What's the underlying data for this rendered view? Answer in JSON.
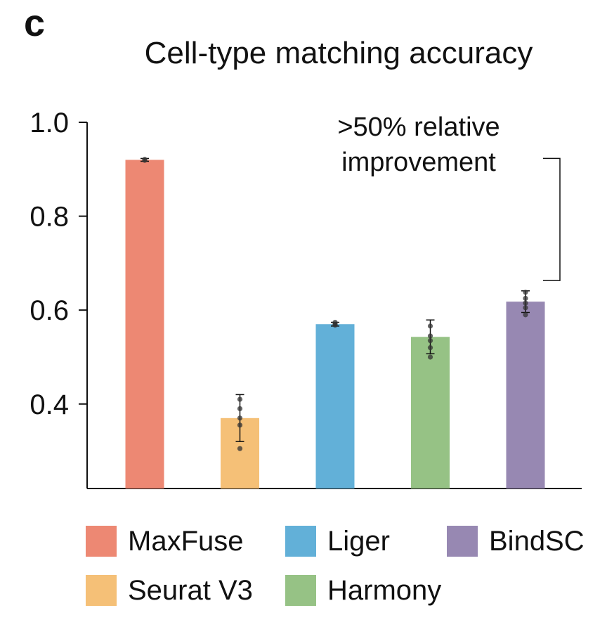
{
  "panel_letter": "c",
  "chart_data": {
    "type": "bar",
    "title": "Cell-type matching accuracy",
    "xlabel": "",
    "ylabel": "",
    "ylim": [
      0.22,
      1.0
    ],
    "yticks": [
      0.4,
      0.6,
      0.8,
      1.0
    ],
    "ytick_labels": [
      "0.4",
      "0.6",
      "0.8",
      "1.0"
    ],
    "grid": false,
    "legend_placement": "bottom",
    "categories": [
      "MaxFuse",
      "Seurat V3",
      "Liger",
      "Harmony",
      "BindSC"
    ],
    "values": [
      0.92,
      0.37,
      0.57,
      0.543,
      0.618
    ],
    "errors": [
      0.003,
      0.05,
      0.004,
      0.036,
      0.023
    ],
    "colors": [
      "#ed8873",
      "#f5c077",
      "#62b0d8",
      "#96c285",
      "#9788b2"
    ],
    "points": [
      [
        0.921,
        0.919
      ],
      [
        0.41,
        0.39,
        0.37,
        0.355,
        0.305
      ],
      [
        0.574,
        0.57,
        0.568
      ],
      [
        0.566,
        0.545,
        0.535,
        0.52,
        0.5
      ],
      [
        0.638,
        0.625,
        0.615,
        0.605,
        0.59
      ]
    ],
    "annotation": {
      "lines": [
        ">50% relative",
        "improvement"
      ],
      "bracket_between": [
        "BindSC",
        "MaxFuse"
      ]
    },
    "legend": [
      {
        "label": "MaxFuse",
        "color": "#ed8873"
      },
      {
        "label": "Liger",
        "color": "#62b0d8"
      },
      {
        "label": "BindSC",
        "color": "#9788b2"
      },
      {
        "label": "Seurat V3",
        "color": "#f5c077"
      },
      {
        "label": "Harmony",
        "color": "#96c285"
      }
    ]
  }
}
